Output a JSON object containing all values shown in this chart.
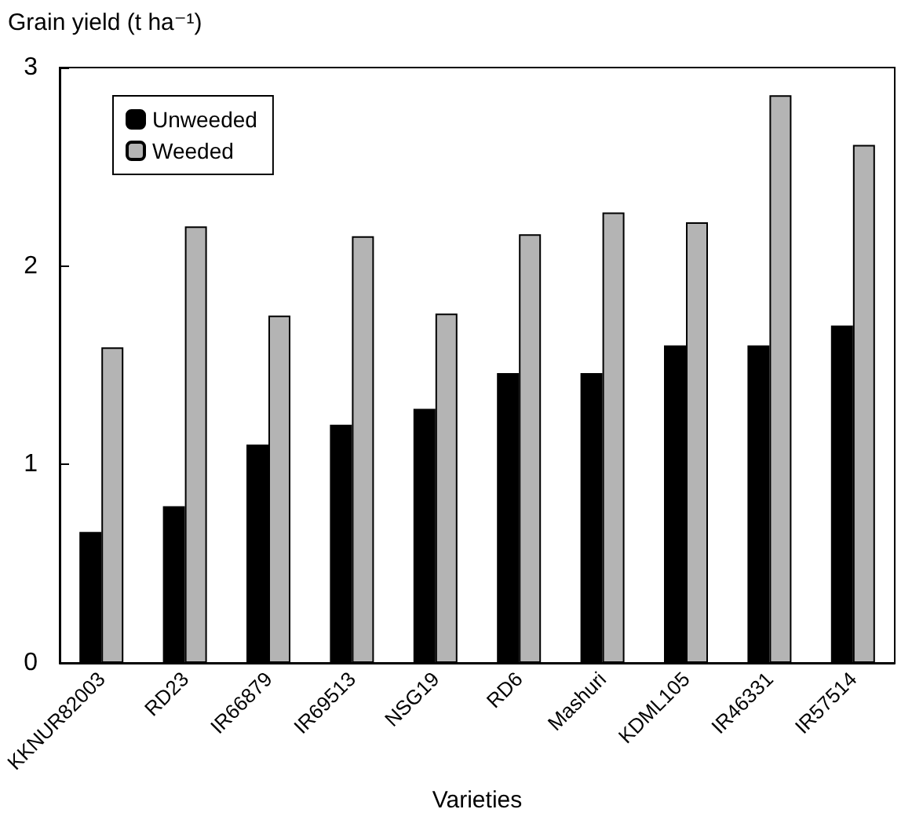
{
  "chart_data": {
    "type": "bar",
    "ylabel": "Grain yield (t ha⁻¹)",
    "xlabel": "Varieties",
    "categories": [
      "KKNUR82003",
      "RD23",
      "IR66879",
      "IR69513",
      "NSG19",
      "RD6",
      "Mashuri",
      "KDML105",
      "IR46331",
      "IR57514"
    ],
    "series": [
      {
        "name": "Unweeded",
        "color": "#000000",
        "values": [
          0.66,
          0.79,
          1.1,
          1.2,
          1.28,
          1.46,
          1.46,
          1.6,
          1.6,
          1.7
        ]
      },
      {
        "name": "Weeded",
        "color": "#b4b4b4",
        "values": [
          1.59,
          2.2,
          1.75,
          2.15,
          1.76,
          2.16,
          2.27,
          2.22,
          2.86,
          2.61
        ]
      }
    ],
    "ylim": [
      0,
      3
    ],
    "yticks": [
      0,
      1,
      2,
      3
    ],
    "grid": false,
    "legend": "top left"
  }
}
